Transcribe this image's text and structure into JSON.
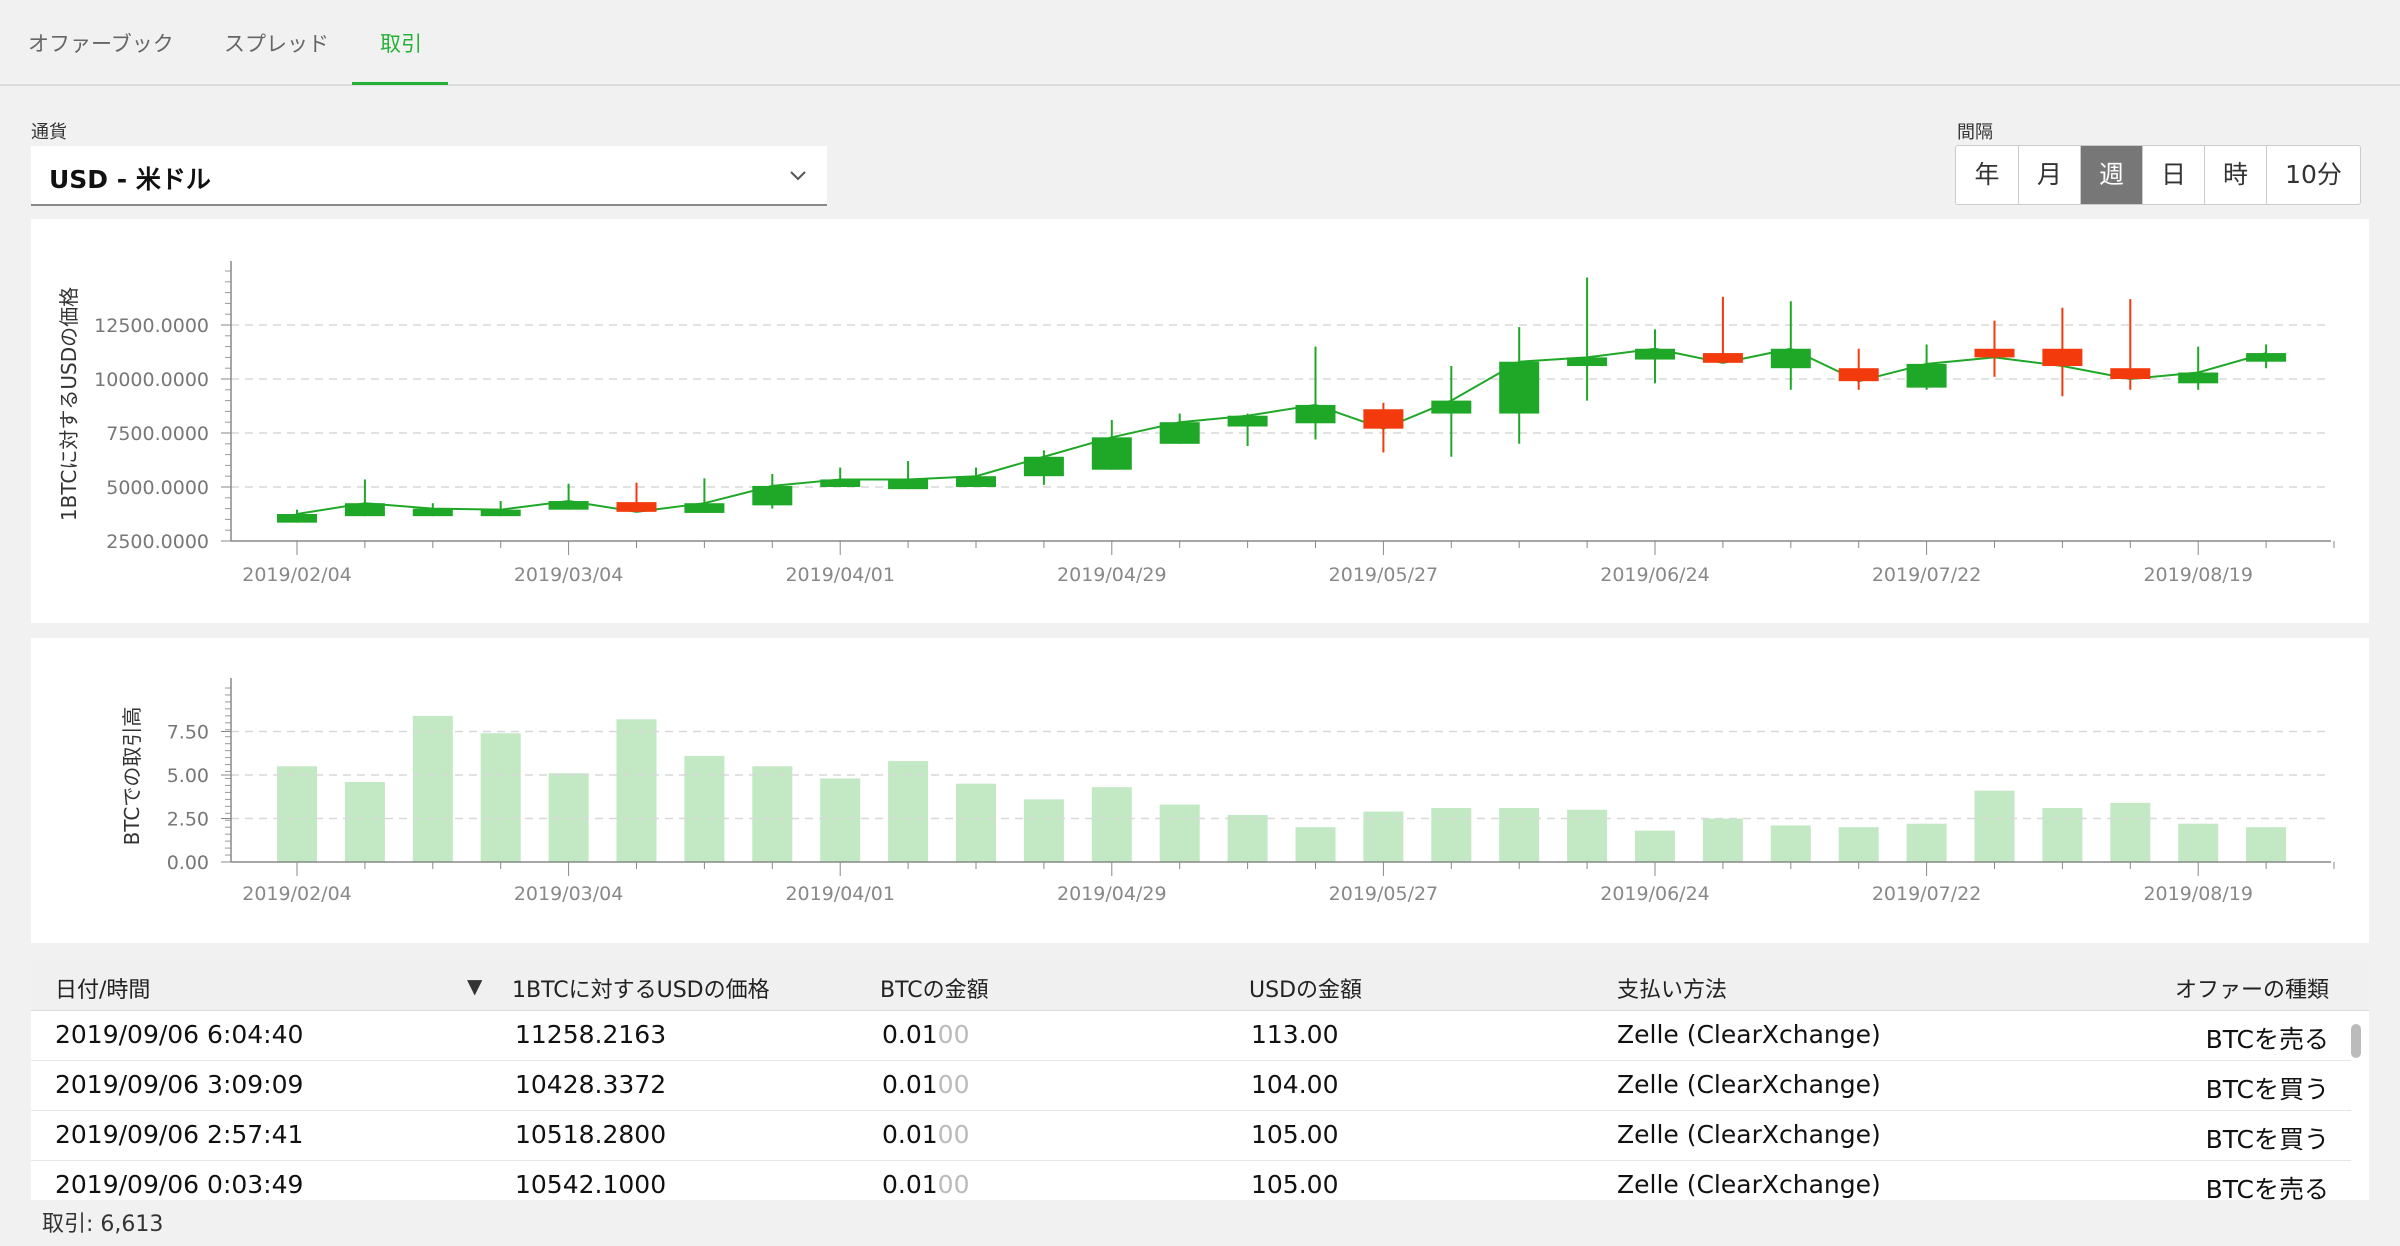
{
  "tabs": [
    {
      "label": "オファーブック",
      "active": false
    },
    {
      "label": "スプレッド",
      "active": false
    },
    {
      "label": "取引",
      "active": true
    }
  ],
  "currency": {
    "label": "通貨",
    "value": "USD  -  米ドル"
  },
  "interval": {
    "label": "間隔",
    "options": [
      "年",
      "月",
      "週",
      "日",
      "時",
      "10分"
    ],
    "selected": "週"
  },
  "colors": {
    "accent": "#25b135",
    "up": "#1fa827",
    "down": "#f23a0c",
    "volume": "#c2e8c4"
  },
  "chart_data": [
    {
      "type": "candlestick",
      "ylabel": "1BTCに対するUSDの価格",
      "ylim": [
        2500,
        15000
      ],
      "y_ticks": [
        "2500.0000",
        "5000.0000",
        "7500.0000",
        "10000.0000",
        "12500.0000"
      ],
      "x_ticks": [
        "2019/02/04",
        "2019/03/04",
        "2019/04/01",
        "2019/04/29",
        "2019/05/27",
        "2019/06/24",
        "2019/07/22",
        "2019/08/19"
      ],
      "grid": true,
      "candles": [
        {
          "date": "2019/02/04",
          "open": 3350,
          "close": 3750,
          "high": 3950,
          "low": 3350
        },
        {
          "date": "2019/02/11",
          "open": 3650,
          "close": 4250,
          "high": 5350,
          "low": 3650
        },
        {
          "date": "2019/02/18",
          "open": 3650,
          "close": 4000,
          "high": 4250,
          "low": 3650
        },
        {
          "date": "2019/02/25",
          "open": 3650,
          "close": 3950,
          "high": 4350,
          "low": 3650
        },
        {
          "date": "2019/03/04",
          "open": 3950,
          "close": 4350,
          "high": 5150,
          "low": 3950
        },
        {
          "date": "2019/03/11",
          "open": 4300,
          "close": 3850,
          "high": 5200,
          "low": 3850
        },
        {
          "date": "2019/03/18",
          "open": 3800,
          "close": 4250,
          "high": 5400,
          "low": 3800
        },
        {
          "date": "2019/03/25",
          "open": 4150,
          "close": 5050,
          "high": 5600,
          "low": 4000
        },
        {
          "date": "2019/04/01",
          "open": 5000,
          "close": 5350,
          "high": 5900,
          "low": 5000
        },
        {
          "date": "2019/04/08",
          "open": 4900,
          "close": 5350,
          "high": 6200,
          "low": 4900
        },
        {
          "date": "2019/04/15",
          "open": 5000,
          "close": 5500,
          "high": 5900,
          "low": 5000
        },
        {
          "date": "2019/04/22",
          "open": 5500,
          "close": 6400,
          "high": 6700,
          "low": 5100
        },
        {
          "date": "2019/04/29",
          "open": 5800,
          "close": 7300,
          "high": 8100,
          "low": 5800
        },
        {
          "date": "2019/05/06",
          "open": 7000,
          "close": 8000,
          "high": 8400,
          "low": 7000
        },
        {
          "date": "2019/05/13",
          "open": 7800,
          "close": 8300,
          "high": 8400,
          "low": 6900
        },
        {
          "date": "2019/05/20",
          "open": 7950,
          "close": 8800,
          "high": 11500,
          "low": 7200
        },
        {
          "date": "2019/05/27",
          "open": 8600,
          "close": 7700,
          "high": 8900,
          "low": 6600
        },
        {
          "date": "2019/06/03",
          "open": 8400,
          "close": 9000,
          "high": 10600,
          "low": 6400
        },
        {
          "date": "2019/06/10",
          "open": 8400,
          "close": 10800,
          "high": 12400,
          "low": 7000
        },
        {
          "date": "2019/06/17",
          "open": 10600,
          "close": 11000,
          "high": 14700,
          "low": 9000
        },
        {
          "date": "2019/06/24",
          "open": 10900,
          "close": 11400,
          "high": 12300,
          "low": 9800
        },
        {
          "date": "2019/07/01",
          "open": 11200,
          "close": 10750,
          "high": 13800,
          "low": 10750
        },
        {
          "date": "2019/07/08",
          "open": 10500,
          "close": 11400,
          "high": 13600,
          "low": 9500
        },
        {
          "date": "2019/07/15",
          "open": 10500,
          "close": 9900,
          "high": 11400,
          "low": 9500
        },
        {
          "date": "2019/07/22",
          "open": 9600,
          "close": 10700,
          "high": 11600,
          "low": 9500
        },
        {
          "date": "2019/07/29",
          "open": 11400,
          "close": 11000,
          "high": 12700,
          "low": 10100
        },
        {
          "date": "2019/08/05",
          "open": 11400,
          "close": 10600,
          "high": 13300,
          "low": 9200
        },
        {
          "date": "2019/08/12",
          "open": 10500,
          "close": 10000,
          "high": 13700,
          "low": 9500
        },
        {
          "date": "2019/08/19",
          "open": 9800,
          "close": 10300,
          "high": 11500,
          "low": 9500
        },
        {
          "date": "2019/08/26",
          "open": 10800,
          "close": 11200,
          "high": 11600,
          "low": 10500
        }
      ]
    },
    {
      "type": "bar",
      "ylabel": "BTCでの取引高",
      "ylim": [
        0,
        10
      ],
      "y_ticks": [
        "0.00",
        "2.50",
        "5.00",
        "7.50"
      ],
      "x_ticks": [
        "2019/02/04",
        "2019/03/04",
        "2019/04/01",
        "2019/04/29",
        "2019/05/27",
        "2019/06/24",
        "2019/07/22",
        "2019/08/19"
      ],
      "grid": true,
      "values": [
        5.5,
        4.6,
        8.4,
        7.4,
        5.1,
        8.2,
        6.1,
        5.5,
        4.8,
        5.8,
        4.5,
        3.6,
        4.3,
        3.3,
        2.7,
        2.0,
        2.9,
        3.1,
        3.1,
        3.0,
        1.8,
        2.5,
        2.1,
        2.0,
        2.2,
        4.1,
        3.1,
        3.4,
        2.2,
        2.0
      ]
    }
  ],
  "table": {
    "columns": [
      "日付/時間",
      "1BTCに対するUSDの価格",
      "BTCの金額",
      "USDの金額",
      "支払い方法",
      "オファーの種類"
    ],
    "rows": [
      {
        "date": "2019/09/06 6:04:40",
        "price": "11258.2163",
        "btc": "0.01",
        "btc_dim": "00",
        "usd": "113.00",
        "method": "Zelle (ClearXchange)",
        "type": "BTCを売る"
      },
      {
        "date": "2019/09/06 3:09:09",
        "price": "10428.3372",
        "btc": "0.01",
        "btc_dim": "00",
        "usd": "104.00",
        "method": "Zelle (ClearXchange)",
        "type": "BTCを買う"
      },
      {
        "date": "2019/09/06 2:57:41",
        "price": "10518.2800",
        "btc": "0.01",
        "btc_dim": "00",
        "usd": "105.00",
        "method": "Zelle (ClearXchange)",
        "type": "BTCを買う"
      },
      {
        "date": "2019/09/06 0:03:49",
        "price": "10542.1000",
        "btc": "0.01",
        "btc_dim": "00",
        "usd": "105.00",
        "method": "Zelle (ClearXchange)",
        "type": "BTCを売る"
      }
    ]
  },
  "footer": {
    "trades": "取引: 6,613"
  }
}
